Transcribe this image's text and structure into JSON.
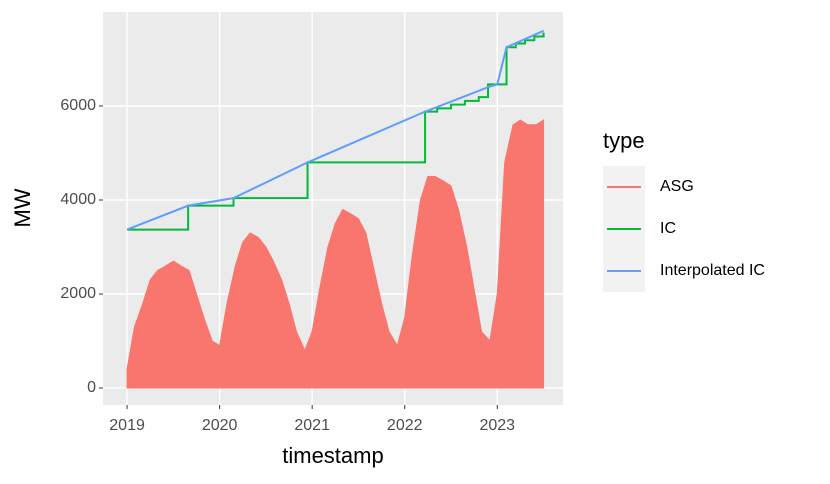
{
  "chart_data": {
    "type": "line",
    "x_label": "timestamp",
    "y_label": "MW",
    "xlim": [
      2018.74,
      2023.71
    ],
    "xticks": [
      2019,
      2020,
      2021,
      2022,
      2023
    ],
    "ylim": [
      -362,
      8000
    ],
    "yticks": [
      0,
      2000,
      4000,
      6000
    ],
    "grid": true,
    "legend_title": "type",
    "legend_position": "right",
    "series": [
      {
        "name": "ASG",
        "color": "#F8766D",
        "style": "area",
        "x": [
          2019,
          2019.08,
          2019.17,
          2019.25,
          2019.33,
          2019.42,
          2019.5,
          2019.58,
          2019.67,
          2019.75,
          2019.83,
          2019.92,
          2020,
          2020.08,
          2020.17,
          2020.25,
          2020.33,
          2020.42,
          2020.5,
          2020.58,
          2020.67,
          2020.75,
          2020.83,
          2020.92,
          2021,
          2021.08,
          2021.17,
          2021.25,
          2021.33,
          2021.42,
          2021.5,
          2021.58,
          2021.67,
          2021.75,
          2021.83,
          2021.92,
          2022,
          2022.08,
          2022.17,
          2022.25,
          2022.33,
          2022.42,
          2022.5,
          2022.58,
          2022.67,
          2022.75,
          2022.83,
          2022.92,
          2023,
          2023.08,
          2023.17,
          2023.25,
          2023.33,
          2023.42,
          2023.5
        ],
        "values": [
          400,
          1300,
          1800,
          2300,
          2500,
          2600,
          2700,
          2600,
          2500,
          2000,
          1500,
          1000,
          900,
          1800,
          2600,
          3100,
          3300,
          3200,
          3000,
          2700,
          2300,
          1800,
          1200,
          800,
          1200,
          2100,
          3000,
          3500,
          3800,
          3700,
          3600,
          3300,
          2500,
          1800,
          1200,
          900,
          1500,
          2800,
          4000,
          4500,
          4500,
          4400,
          4300,
          3800,
          3000,
          2100,
          1200,
          1000,
          2000,
          4800,
          5600,
          5700,
          5600,
          5600,
          5700
        ]
      },
      {
        "name": "IC",
        "color": "#00BA38",
        "style": "step",
        "x": [
          2019.0,
          2019.66,
          2020.15,
          2020.95,
          2022.22,
          2022.35,
          2022.5,
          2022.65,
          2022.8,
          2022.9,
          2023.1,
          2023.2,
          2023.3,
          2023.4,
          2023.5
        ],
        "values": [
          3370,
          3880,
          4040,
          4800,
          5880,
          5950,
          6030,
          6110,
          6190,
          6460,
          7250,
          7330,
          7400,
          7480,
          7560
        ]
      },
      {
        "name": "Interpolated IC",
        "color": "#619CFF",
        "style": "line",
        "x": [
          2019.0,
          2019.66,
          2020.15,
          2020.95,
          2022.22,
          2022.9,
          2023.0,
          2023.1,
          2023.5
        ],
        "values": [
          3370,
          3880,
          4040,
          4800,
          5880,
          6400,
          6460,
          7250,
          7600
        ]
      }
    ]
  }
}
